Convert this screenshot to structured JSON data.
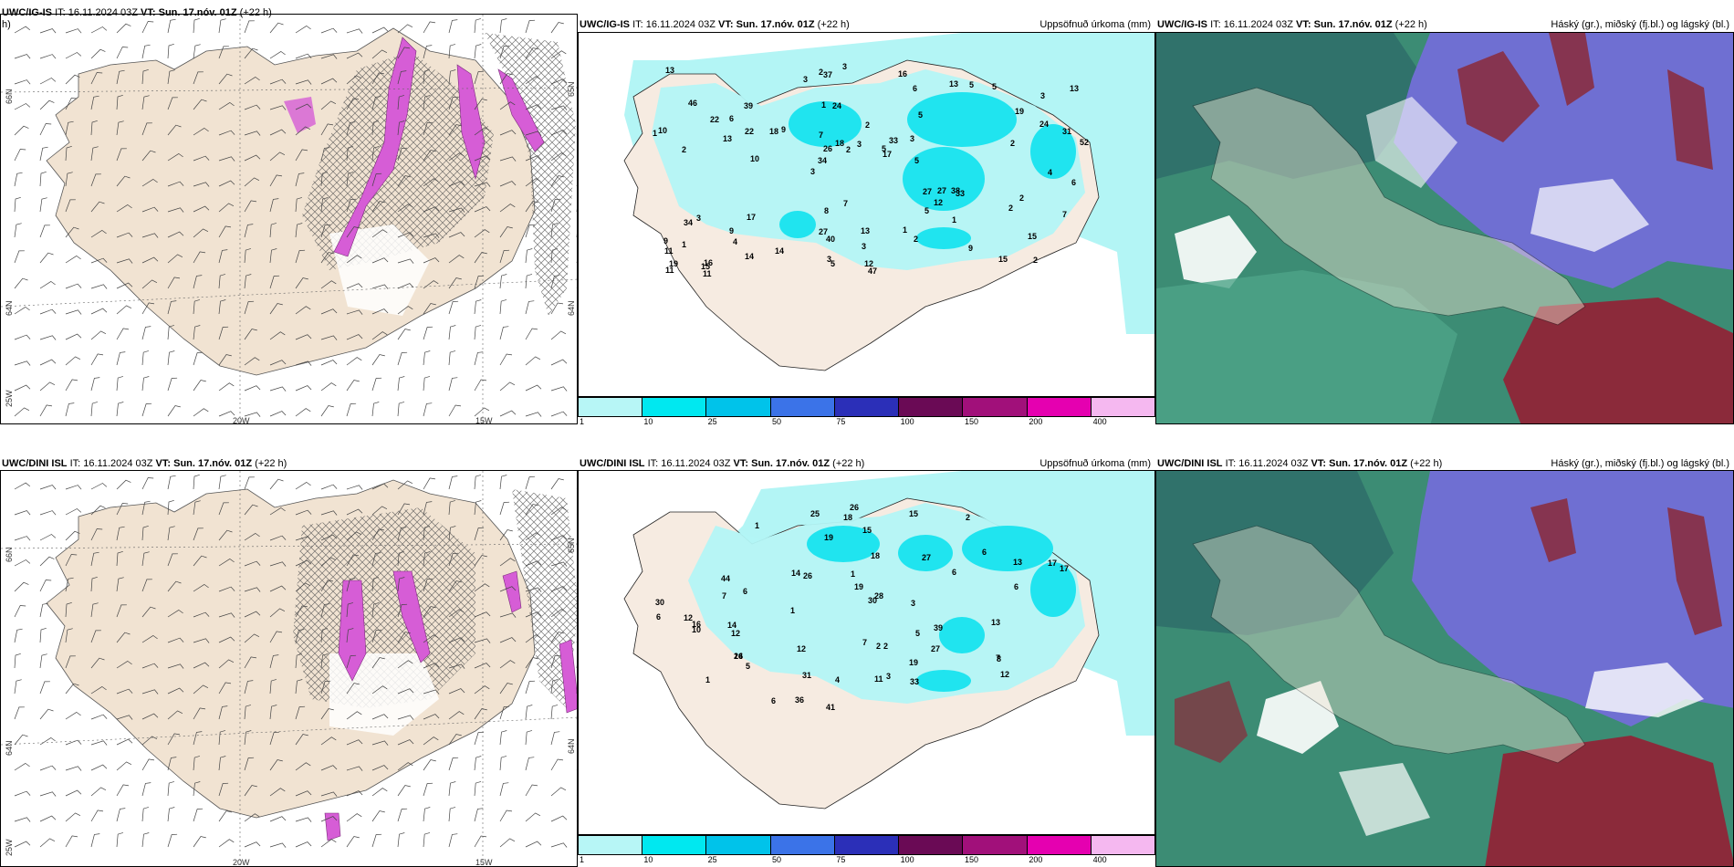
{
  "rows": [
    {
      "model": "UWC/IG-IS",
      "it": "IT: 16.11.2024 03Z",
      "vt": "VT: Sun. 17.nóv. 01Z",
      "lead": "(+22 h)",
      "left_header_line2": "h)",
      "precip_values": [
        "2",
        "2",
        "3",
        "3",
        "5",
        "16",
        "1",
        "2",
        "3",
        "9",
        "11",
        "4",
        "24",
        "33",
        "33",
        "46",
        "37",
        "52",
        "27",
        "24",
        "34",
        "27",
        "26",
        "39",
        "13",
        "17",
        "15",
        "15",
        "38",
        "47",
        "18",
        "13",
        "5",
        "14",
        "31",
        "5",
        "19",
        "40",
        "17",
        "34",
        "19",
        "13",
        "12",
        "2",
        "9",
        "11",
        "11",
        "13",
        "5",
        "3",
        "10",
        "10",
        "6",
        "5",
        "15",
        "16",
        "3",
        "18",
        "7",
        "8",
        "14",
        "27",
        "22",
        "9",
        "13",
        "22",
        "6",
        "7",
        "3",
        "3",
        "1",
        "5",
        "2",
        "3",
        "2",
        "7",
        "9",
        "12",
        "1",
        "2",
        "4",
        "3",
        "1",
        "2",
        "2",
        "1",
        "5",
        "6"
      ],
      "panel_titles": {
        "precip": "Uppsöfnuð úrkoma (mm)",
        "cloud": "Háský (gr.), miðský (fj.bl.) og lágský (bl.)"
      }
    },
    {
      "model": "UWC/DINI ISL",
      "it": "IT: 16.11.2024 03Z",
      "vt": "VT: Sun. 17.nóv. 01Z",
      "lead": "(+22 h)",
      "precip_values": [
        "1",
        "2",
        "1",
        "6",
        "2",
        "6",
        "12",
        "16",
        "13",
        "6",
        "12",
        "26",
        "27",
        "30",
        "41",
        "25",
        "12",
        "30",
        "24",
        "36",
        "33",
        "18",
        "19",
        "28",
        "19",
        "31",
        "16",
        "15",
        "18",
        "39",
        "44",
        "5",
        "3",
        "7",
        "8",
        "10",
        "17",
        "3",
        "27",
        "13",
        "17",
        "15",
        "4",
        "14",
        "6",
        "7",
        "5",
        "11",
        "12",
        "19",
        "26",
        "6",
        "1",
        "6",
        "1",
        "2",
        "14",
        "7"
      ],
      "panel_titles": {
        "precip": "Uppsöfnuð úrkoma (mm)",
        "cloud": "Háský (gr.), miðský (fj.bl.) og lágský (bl.)"
      }
    }
  ],
  "axis_labels": {
    "lon_20w": "20W",
    "lon_15w": "15W",
    "lat_65n_left": "66N",
    "lat_64n_left": "64N",
    "lat_63n_left": "25W",
    "lat_right_top": "65N",
    "lat_right_bot": "64N"
  },
  "colorbar": {
    "labels": [
      "1",
      "10",
      "25",
      "50",
      "75",
      "100",
      "150",
      "200",
      "400"
    ],
    "colors": [
      "#b7f6f6",
      "#00e8f0",
      "#00c3ea",
      "#3b73e8",
      "#2b2fb8",
      "#6a0a55",
      "#a1107a",
      "#e500b0",
      "#f5b8f0"
    ]
  },
  "colors": {
    "land": "#f1e3d2",
    "sea": "#ffffff",
    "precip_light": "#b3f5f5",
    "precip_mid": "#20e4ef",
    "precip_high": "#0cc0e8",
    "freezing": "#d65dd6",
    "cloud_low": "#6f6fd2",
    "cloud_high": "#8b2a3a",
    "cloud_mid": "#3e9c80"
  }
}
